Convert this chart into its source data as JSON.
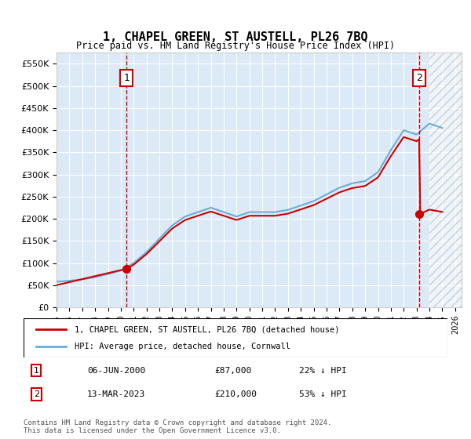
{
  "title": "1, CHAPEL GREEN, ST AUSTELL, PL26 7BQ",
  "subtitle": "Price paid vs. HM Land Registry's House Price Index (HPI)",
  "ylabel": "",
  "xlabel": "",
  "ylim": [
    0,
    575000
  ],
  "yticks": [
    0,
    50000,
    100000,
    150000,
    200000,
    250000,
    300000,
    350000,
    400000,
    450000,
    500000,
    550000
  ],
  "ytick_labels": [
    "£0",
    "£50K",
    "£100K",
    "£150K",
    "£200K",
    "£250K",
    "£300K",
    "£350K",
    "£400K",
    "£450K",
    "£500K",
    "£550K"
  ],
  "xlim_start": 1995.0,
  "xlim_end": 2026.5,
  "bg_color": "#dce9f7",
  "hatch_start": 2024.0,
  "marker1": {
    "x": 2000.44,
    "y_red": 87000,
    "label": "1",
    "date": "06-JUN-2000",
    "price": "£87,000",
    "pct": "22% ↓ HPI"
  },
  "marker2": {
    "x": 2023.2,
    "y_red": 210000,
    "label": "2",
    "date": "13-MAR-2023",
    "price": "£210,000",
    "pct": "53% ↓ HPI"
  },
  "legend_line1": "1, CHAPEL GREEN, ST AUSTELL, PL26 7BQ (detached house)",
  "legend_line2": "HPI: Average price, detached house, Cornwall",
  "footer": "Contains HM Land Registry data © Crown copyright and database right 2024.\nThis data is licensed under the Open Government Licence v3.0.",
  "red_color": "#cc0000",
  "blue_color": "#6baed6",
  "hpi_years": [
    1995,
    1996,
    1997,
    1998,
    1999,
    2000,
    2001,
    2002,
    2003,
    2004,
    2005,
    2006,
    2007,
    2008,
    2009,
    2010,
    2011,
    2012,
    2013,
    2014,
    2015,
    2016,
    2017,
    2018,
    2019,
    2020,
    2021,
    2022,
    2023,
    2024,
    2025
  ],
  "hpi_values": [
    58000,
    60000,
    63000,
    68000,
    75000,
    83000,
    100000,
    125000,
    155000,
    185000,
    205000,
    215000,
    225000,
    215000,
    205000,
    215000,
    215000,
    215000,
    220000,
    230000,
    240000,
    255000,
    270000,
    280000,
    285000,
    305000,
    355000,
    400000,
    390000,
    415000,
    405000
  ],
  "price_years": [
    1995,
    2000.44,
    2023.2
  ],
  "price_values": [
    50000,
    87000,
    210000
  ]
}
